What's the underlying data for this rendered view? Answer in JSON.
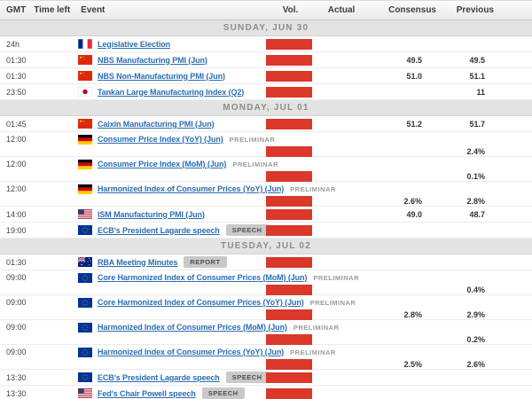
{
  "header": {
    "gmt": "GMT",
    "time_left": "Time left",
    "event": "Event",
    "vol": "Vol.",
    "actual": "Actual",
    "consensus": "Consensus",
    "previous": "Previous"
  },
  "colors": {
    "volatility_red": "#d9382a",
    "link_blue": "#2a6db3",
    "section_bg": "#e3e3e3",
    "chip_bg": "#c9c9c9"
  },
  "sections": [
    {
      "label": "SUNDAY, JUN 30",
      "events": [
        {
          "gmt": "24h",
          "country": "FR",
          "event": "Legislative Election",
          "badge": "",
          "badge_style": "",
          "volatility": "high",
          "actual": "",
          "consensus": "",
          "previous": "",
          "two_line": false
        },
        {
          "gmt": "01:30",
          "country": "CN",
          "event": "NBS Manufacturing PMI (Jun)",
          "badge": "",
          "badge_style": "",
          "volatility": "high",
          "actual": "",
          "consensus": "49.5",
          "previous": "49.5",
          "two_line": false
        },
        {
          "gmt": "01:30",
          "country": "CN",
          "event": "NBS Non-Manufacturing PMI (Jun)",
          "badge": "",
          "badge_style": "",
          "volatility": "high",
          "actual": "",
          "consensus": "51.0",
          "previous": "51.1",
          "two_line": false
        },
        {
          "gmt": "23:50",
          "country": "JP",
          "event": "Tankan Large Manufacturing Index (Q2)",
          "badge": "",
          "badge_style": "",
          "volatility": "high",
          "actual": "",
          "consensus": "",
          "previous": "11",
          "two_line": false
        }
      ]
    },
    {
      "label": "MONDAY, JUL 01",
      "events": [
        {
          "gmt": "01:45",
          "country": "CN",
          "event": "Caixin Manufacturing PMI (Jun)",
          "badge": "",
          "badge_style": "",
          "volatility": "high",
          "actual": "",
          "consensus": "51.2",
          "previous": "51.7",
          "two_line": false
        },
        {
          "gmt": "12:00",
          "country": "DE",
          "event": "Consumer Price Index (YoY) (Jun)",
          "badge": "PRELIMINAR",
          "badge_style": "plain",
          "volatility": "high",
          "actual": "",
          "consensus": "",
          "previous": "2.4%",
          "two_line": true
        },
        {
          "gmt": "12:00",
          "country": "DE",
          "event": "Consumer Price Index (MoM) (Jun)",
          "badge": "PRELIMINAR",
          "badge_style": "plain",
          "volatility": "high",
          "actual": "",
          "consensus": "",
          "previous": "0.1%",
          "two_line": true
        },
        {
          "gmt": "12:00",
          "country": "DE",
          "event": "Harmonized Index of Consumer Prices (YoY) (Jun)",
          "badge": "PRELIMINAR",
          "badge_style": "plain",
          "volatility": "high",
          "actual": "",
          "consensus": "2.6%",
          "previous": "2.8%",
          "two_line": true
        },
        {
          "gmt": "14:00",
          "country": "US",
          "event": "ISM Manufacturing PMI (Jun)",
          "badge": "",
          "badge_style": "",
          "volatility": "high",
          "actual": "",
          "consensus": "49.0",
          "previous": "48.7",
          "two_line": false
        },
        {
          "gmt": "19:00",
          "country": "EU",
          "event": "ECB's President Lagarde speech",
          "badge": "SPEECH",
          "badge_style": "chip",
          "volatility": "high",
          "actual": "",
          "consensus": "",
          "previous": "",
          "two_line": false
        }
      ]
    },
    {
      "label": "TUESDAY, JUL 02",
      "events": [
        {
          "gmt": "01:30",
          "country": "AU",
          "event": "RBA Meeting Minutes",
          "badge": "REPORT",
          "badge_style": "chip",
          "volatility": "high",
          "actual": "",
          "consensus": "",
          "previous": "",
          "two_line": false
        },
        {
          "gmt": "09:00",
          "country": "EU",
          "event": "Core Harmonized Index of Consumer Prices (MoM) (Jun)",
          "badge": "PRELIMINAR",
          "badge_style": "plain",
          "volatility": "high",
          "actual": "",
          "consensus": "",
          "previous": "0.4%",
          "two_line": true
        },
        {
          "gmt": "09:00",
          "country": "EU",
          "event": "Core Harmonized Index of Consumer Prices (YoY) (Jun)",
          "badge": "PRELIMINAR",
          "badge_style": "plain",
          "volatility": "high",
          "actual": "",
          "consensus": "2.8%",
          "previous": "2.9%",
          "two_line": true
        },
        {
          "gmt": "09:00",
          "country": "EU",
          "event": "Harmonized Index of Consumer Prices (MoM) (Jun)",
          "badge": "PRELIMINAR",
          "badge_style": "plain",
          "volatility": "high",
          "actual": "",
          "consensus": "",
          "previous": "0.2%",
          "two_line": true
        },
        {
          "gmt": "09:00",
          "country": "EU",
          "event": "Harmonized Index of Consumer Prices (YoY) (Jun)",
          "badge": "PRELIMINAR",
          "badge_style": "plain",
          "volatility": "high",
          "actual": "",
          "consensus": "2.5%",
          "previous": "2.6%",
          "two_line": true
        },
        {
          "gmt": "13:30",
          "country": "EU",
          "event": "ECB's President Lagarde speech",
          "badge": "SPEECH",
          "badge_style": "chip",
          "volatility": "high",
          "actual": "",
          "consensus": "",
          "previous": "",
          "two_line": false
        },
        {
          "gmt": "13:30",
          "country": "US",
          "event": "Fed's Chair Powell speech",
          "badge": "SPEECH",
          "badge_style": "chip",
          "volatility": "high",
          "actual": "",
          "consensus": "",
          "previous": "",
          "two_line": false
        }
      ]
    }
  ]
}
